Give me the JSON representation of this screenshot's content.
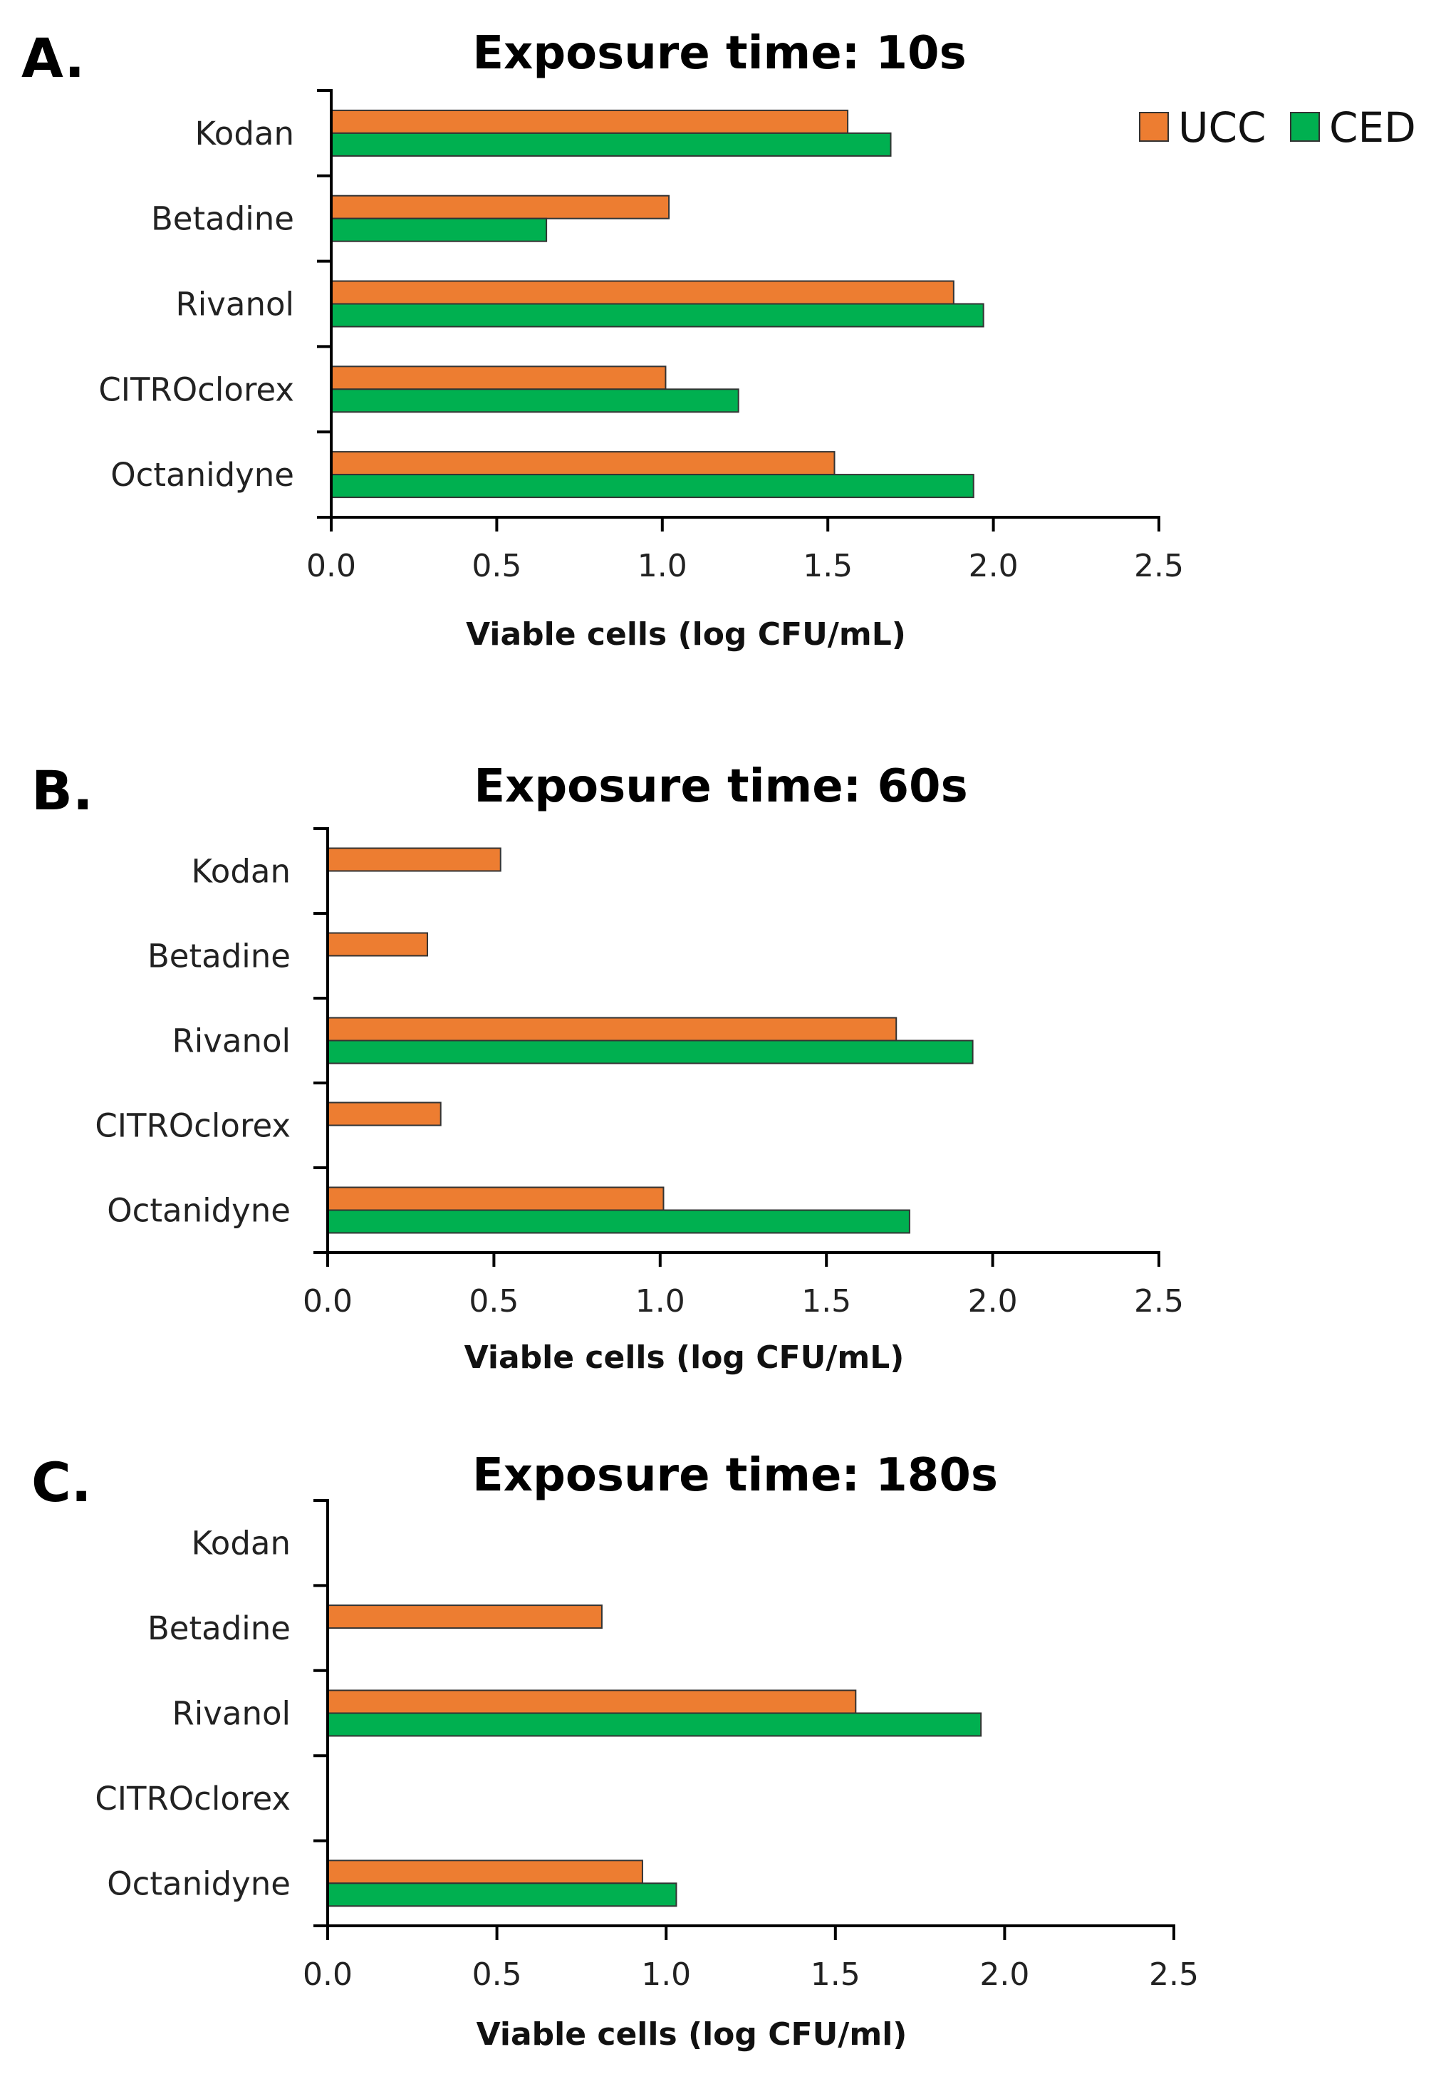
{
  "legend": [
    {
      "name": "UCC",
      "color": "#ED7D31"
    },
    {
      "name": "CED",
      "color": "#00B050"
    }
  ],
  "chart_data": [
    {
      "type": "bar",
      "orientation": "horizontal",
      "panel": "A.",
      "title": "Exposure time: 10s",
      "xlabel": "Viable cells (log CFU/mL)",
      "ylabel": "",
      "xlim": [
        0,
        2.5
      ],
      "xticks": [
        "0.0",
        "0.5",
        "1.0",
        "1.5",
        "2.0",
        "2.5"
      ],
      "categories": [
        "Kodan",
        "Betadine",
        "Rivanol",
        "CITROclorex",
        "Octanidyne"
      ],
      "series": [
        {
          "name": "UCC",
          "values": [
            1.56,
            1.02,
            1.88,
            1.01,
            1.52
          ]
        },
        {
          "name": "CED",
          "values": [
            1.69,
            0.65,
            1.97,
            1.23,
            1.94
          ]
        }
      ]
    },
    {
      "type": "bar",
      "orientation": "horizontal",
      "panel": "B.",
      "title": "Exposure time: 60s",
      "xlabel": "Viable cells (log CFU/mL)",
      "ylabel": "",
      "xlim": [
        0,
        2.5
      ],
      "xticks": [
        "0.0",
        "0.5",
        "1.0",
        "1.5",
        "2.0",
        "2.5"
      ],
      "categories": [
        "Kodan",
        "Betadine",
        "Rivanol",
        "CITROclorex",
        "Octanidyne"
      ],
      "series": [
        {
          "name": "UCC",
          "values": [
            0.52,
            0.3,
            1.71,
            0.34,
            1.01
          ]
        },
        {
          "name": "CED",
          "values": [
            0,
            0,
            1.94,
            0,
            1.75
          ]
        }
      ]
    },
    {
      "type": "bar",
      "orientation": "horizontal",
      "panel": "C.",
      "title": "Exposure time: 180s",
      "xlabel": "Viable cells (log CFU/ml)",
      "ylabel": "",
      "xlim": [
        0,
        2.5
      ],
      "xticks": [
        "0.0",
        "0.5",
        "1.0",
        "1.5",
        "2.0",
        "2.5"
      ],
      "categories": [
        "Kodan",
        "Betadine",
        "Rivanol",
        "CITROclorex",
        "Octanidyne"
      ],
      "series": [
        {
          "name": "UCC",
          "values": [
            0,
            0.81,
            1.56,
            0,
            0.93
          ]
        },
        {
          "name": "CED",
          "values": [
            0,
            0,
            1.93,
            0,
            1.03
          ]
        }
      ]
    }
  ]
}
